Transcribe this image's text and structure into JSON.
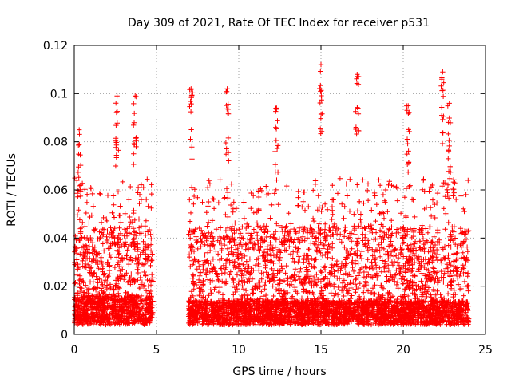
{
  "chart_data": {
    "type": "scatter",
    "title": "Day 309 of 2021, Rate Of TEC Index for receiver p531",
    "xlabel": "GPS time / hours",
    "ylabel": "ROTI / TECUs",
    "xlim": [
      0,
      25
    ],
    "ylim": [
      0,
      0.12
    ],
    "x_ticks": [
      "0",
      "5",
      "10",
      "15",
      "20",
      "25"
    ],
    "y_ticks": [
      "0",
      "0.02",
      "0.04",
      "0.06",
      "0.08",
      "0.1",
      "0.12"
    ],
    "grid": true,
    "legend": "none",
    "marker": "+",
    "color": "#ff0000",
    "series": [
      {
        "segments": [
          {
            "x_start": 0.0,
            "x_end": 4.8,
            "base": 0.012,
            "upper_envelope": 0.045
          },
          {
            "x_start": 6.95,
            "x_end": 24.0,
            "base": 0.01,
            "upper_envelope": 0.045
          }
        ],
        "notable_points": [
          {
            "x": 0.3,
            "y": 0.085
          },
          {
            "x": 2.6,
            "y": 0.099
          },
          {
            "x": 3.7,
            "y": 0.099
          },
          {
            "x": 7.1,
            "y": 0.102
          },
          {
            "x": 9.3,
            "y": 0.102
          },
          {
            "x": 12.3,
            "y": 0.094
          },
          {
            "x": 15.0,
            "y": 0.112
          },
          {
            "x": 17.2,
            "y": 0.108
          },
          {
            "x": 20.3,
            "y": 0.095
          },
          {
            "x": 22.4,
            "y": 0.109
          },
          {
            "x": 22.8,
            "y": 0.096
          }
        ]
      }
    ]
  }
}
